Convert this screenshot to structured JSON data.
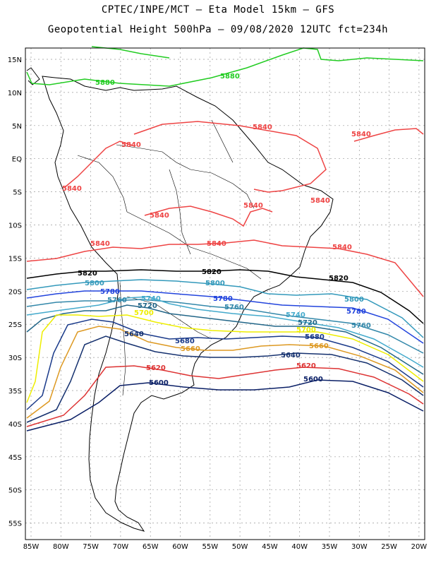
{
  "header": {
    "line1": "CPTEC/INPE/MCT –  Eta Model 15km – GFS",
    "line2": "Geopotential Height 500hPa – 09/08/2020 12UTC fct=234h"
  },
  "axes": {
    "lat_ticks": [
      "15N",
      "10N",
      "5N",
      "EQ",
      "5S",
      "10S",
      "15S",
      "20S",
      "25S",
      "30S",
      "35S",
      "40S",
      "45S",
      "50S",
      "55S"
    ],
    "lon_ticks": [
      "85W",
      "80W",
      "75W",
      "70W",
      "65W",
      "60W",
      "55W",
      "50W",
      "45W",
      "40W",
      "35W",
      "30W",
      "25W",
      "20W"
    ]
  },
  "contours": [
    {
      "value": "5880",
      "color": "#22cc22"
    },
    {
      "value": "5840",
      "color": "#ee4444"
    },
    {
      "value": "5820",
      "color": "#000000"
    },
    {
      "value": "5800",
      "color": "#3399bb"
    },
    {
      "value": "5780",
      "color": "#2244dd"
    },
    {
      "value": "5760",
      "color": "#3388aa"
    },
    {
      "value": "5740",
      "color": "#44aacc"
    },
    {
      "value": "5720",
      "color": "#226688"
    },
    {
      "value": "5700",
      "color": "#eeee00"
    },
    {
      "value": "5680",
      "color": "#1a3a8a"
    },
    {
      "value": "5660",
      "color": "#dd9922"
    },
    {
      "value": "5640",
      "color": "#14306e"
    },
    {
      "value": "5620",
      "color": "#dd3333"
    },
    {
      "value": "5600",
      "color": "#0a1f66"
    }
  ]
}
